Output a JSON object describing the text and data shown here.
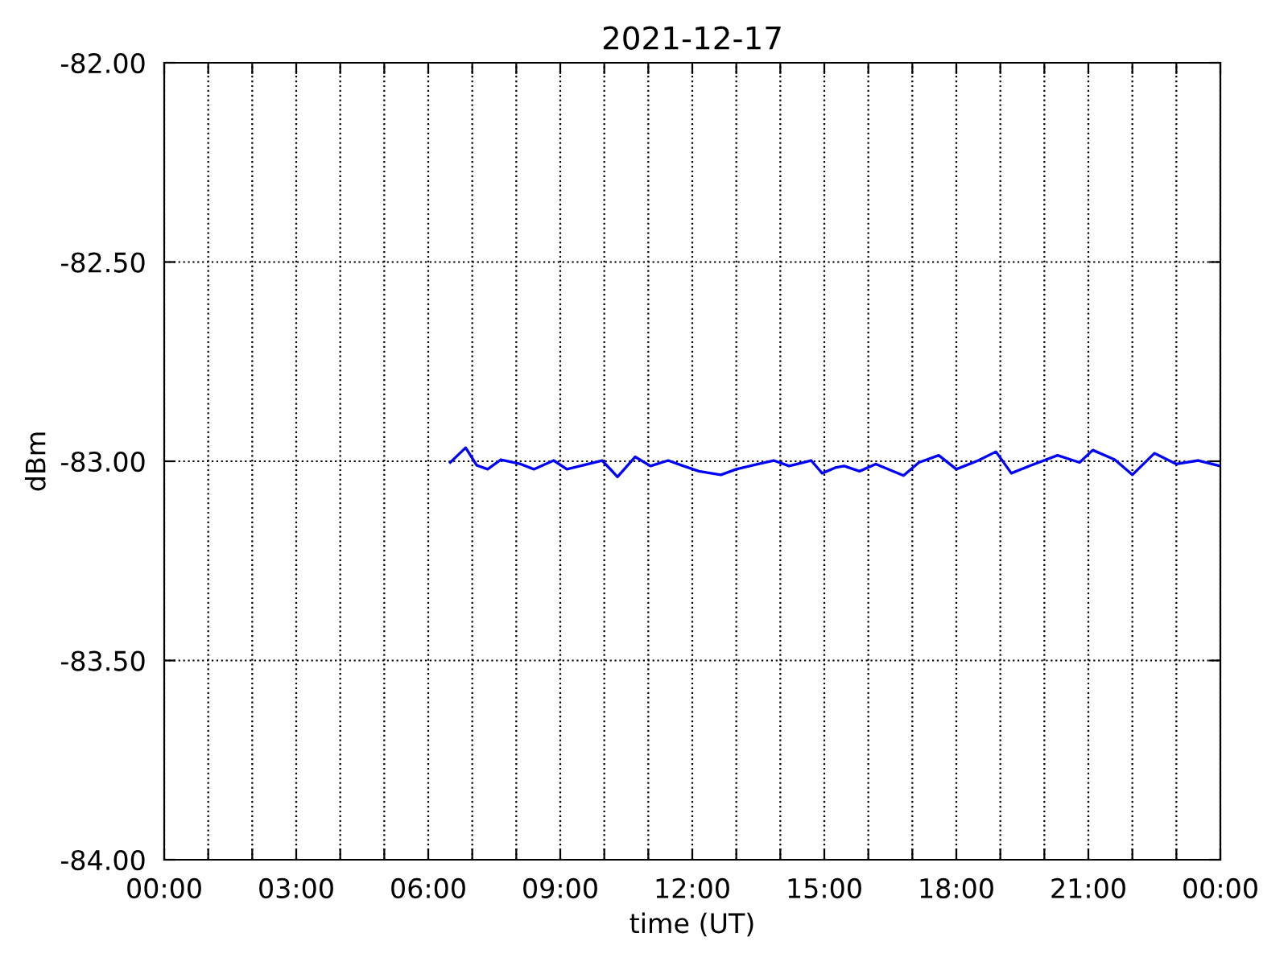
{
  "chart_data": {
    "type": "line",
    "title": "2021-12-17",
    "xlabel": "time (UT)",
    "ylabel": "dBm",
    "series": [
      {
        "color": "#0000ff",
        "x": [
          6.5,
          6.85,
          7.1,
          7.35,
          7.65,
          8.1,
          8.4,
          8.85,
          9.15,
          9.45,
          9.95,
          10.3,
          10.7,
          11.05,
          11.45,
          11.8,
          12.15,
          12.65,
          13.0,
          13.5,
          13.85,
          14.2,
          14.7,
          14.95,
          15.25,
          15.45,
          15.8,
          16.17,
          16.8,
          17.15,
          17.6,
          18.0,
          18.5,
          18.9,
          19.25,
          19.7,
          20.3,
          20.8,
          21.1,
          21.6,
          22.0,
          22.5,
          23.0,
          23.5,
          24.0
        ],
        "values": [
          -83.003,
          -82.966,
          -83.01,
          -83.02,
          -82.996,
          -83.007,
          -83.02,
          -82.998,
          -83.02,
          -83.012,
          -82.998,
          -83.039,
          -82.989,
          -83.012,
          -82.998,
          -83.012,
          -83.025,
          -83.034,
          -83.02,
          -83.007,
          -82.998,
          -83.012,
          -82.998,
          -83.03,
          -83.016,
          -83.012,
          -83.025,
          -83.007,
          -83.036,
          -83.003,
          -82.985,
          -83.02,
          -82.998,
          -82.976,
          -83.03,
          -83.01,
          -82.985,
          -83.003,
          -82.972,
          -82.996,
          -83.034,
          -82.98,
          -83.007,
          -82.998,
          -83.012
        ]
      }
    ],
    "xlim": [
      0,
      24
    ],
    "xticks": [
      {
        "value": 0,
        "label": "00:00"
      },
      {
        "value": 1,
        "label": null
      },
      {
        "value": 2,
        "label": null
      },
      {
        "value": 3,
        "label": "03:00"
      },
      {
        "value": 4,
        "label": null
      },
      {
        "value": 5,
        "label": null
      },
      {
        "value": 6,
        "label": "06:00"
      },
      {
        "value": 7,
        "label": null
      },
      {
        "value": 8,
        "label": null
      },
      {
        "value": 9,
        "label": "09:00"
      },
      {
        "value": 10,
        "label": null
      },
      {
        "value": 11,
        "label": null
      },
      {
        "value": 12,
        "label": "12:00"
      },
      {
        "value": 13,
        "label": null
      },
      {
        "value": 14,
        "label": null
      },
      {
        "value": 15,
        "label": "15:00"
      },
      {
        "value": 16,
        "label": null
      },
      {
        "value": 17,
        "label": null
      },
      {
        "value": 18,
        "label": "18:00"
      },
      {
        "value": 19,
        "label": null
      },
      {
        "value": 20,
        "label": null
      },
      {
        "value": 21,
        "label": "21:00"
      },
      {
        "value": 22,
        "label": null
      },
      {
        "value": 23,
        "label": null
      },
      {
        "value": 24,
        "label": "00:00"
      }
    ],
    "ylim": [
      -84,
      -82
    ],
    "yticks": [
      {
        "value": -84,
        "label": "-84.00"
      },
      {
        "value": -83.5,
        "label": "-83.50"
      },
      {
        "value": -83,
        "label": "-83.00"
      },
      {
        "value": -82.5,
        "label": "-82.50"
      },
      {
        "value": -82,
        "label": "-82.00"
      }
    ],
    "grid": true,
    "line_style": "solid",
    "marker": "none"
  }
}
